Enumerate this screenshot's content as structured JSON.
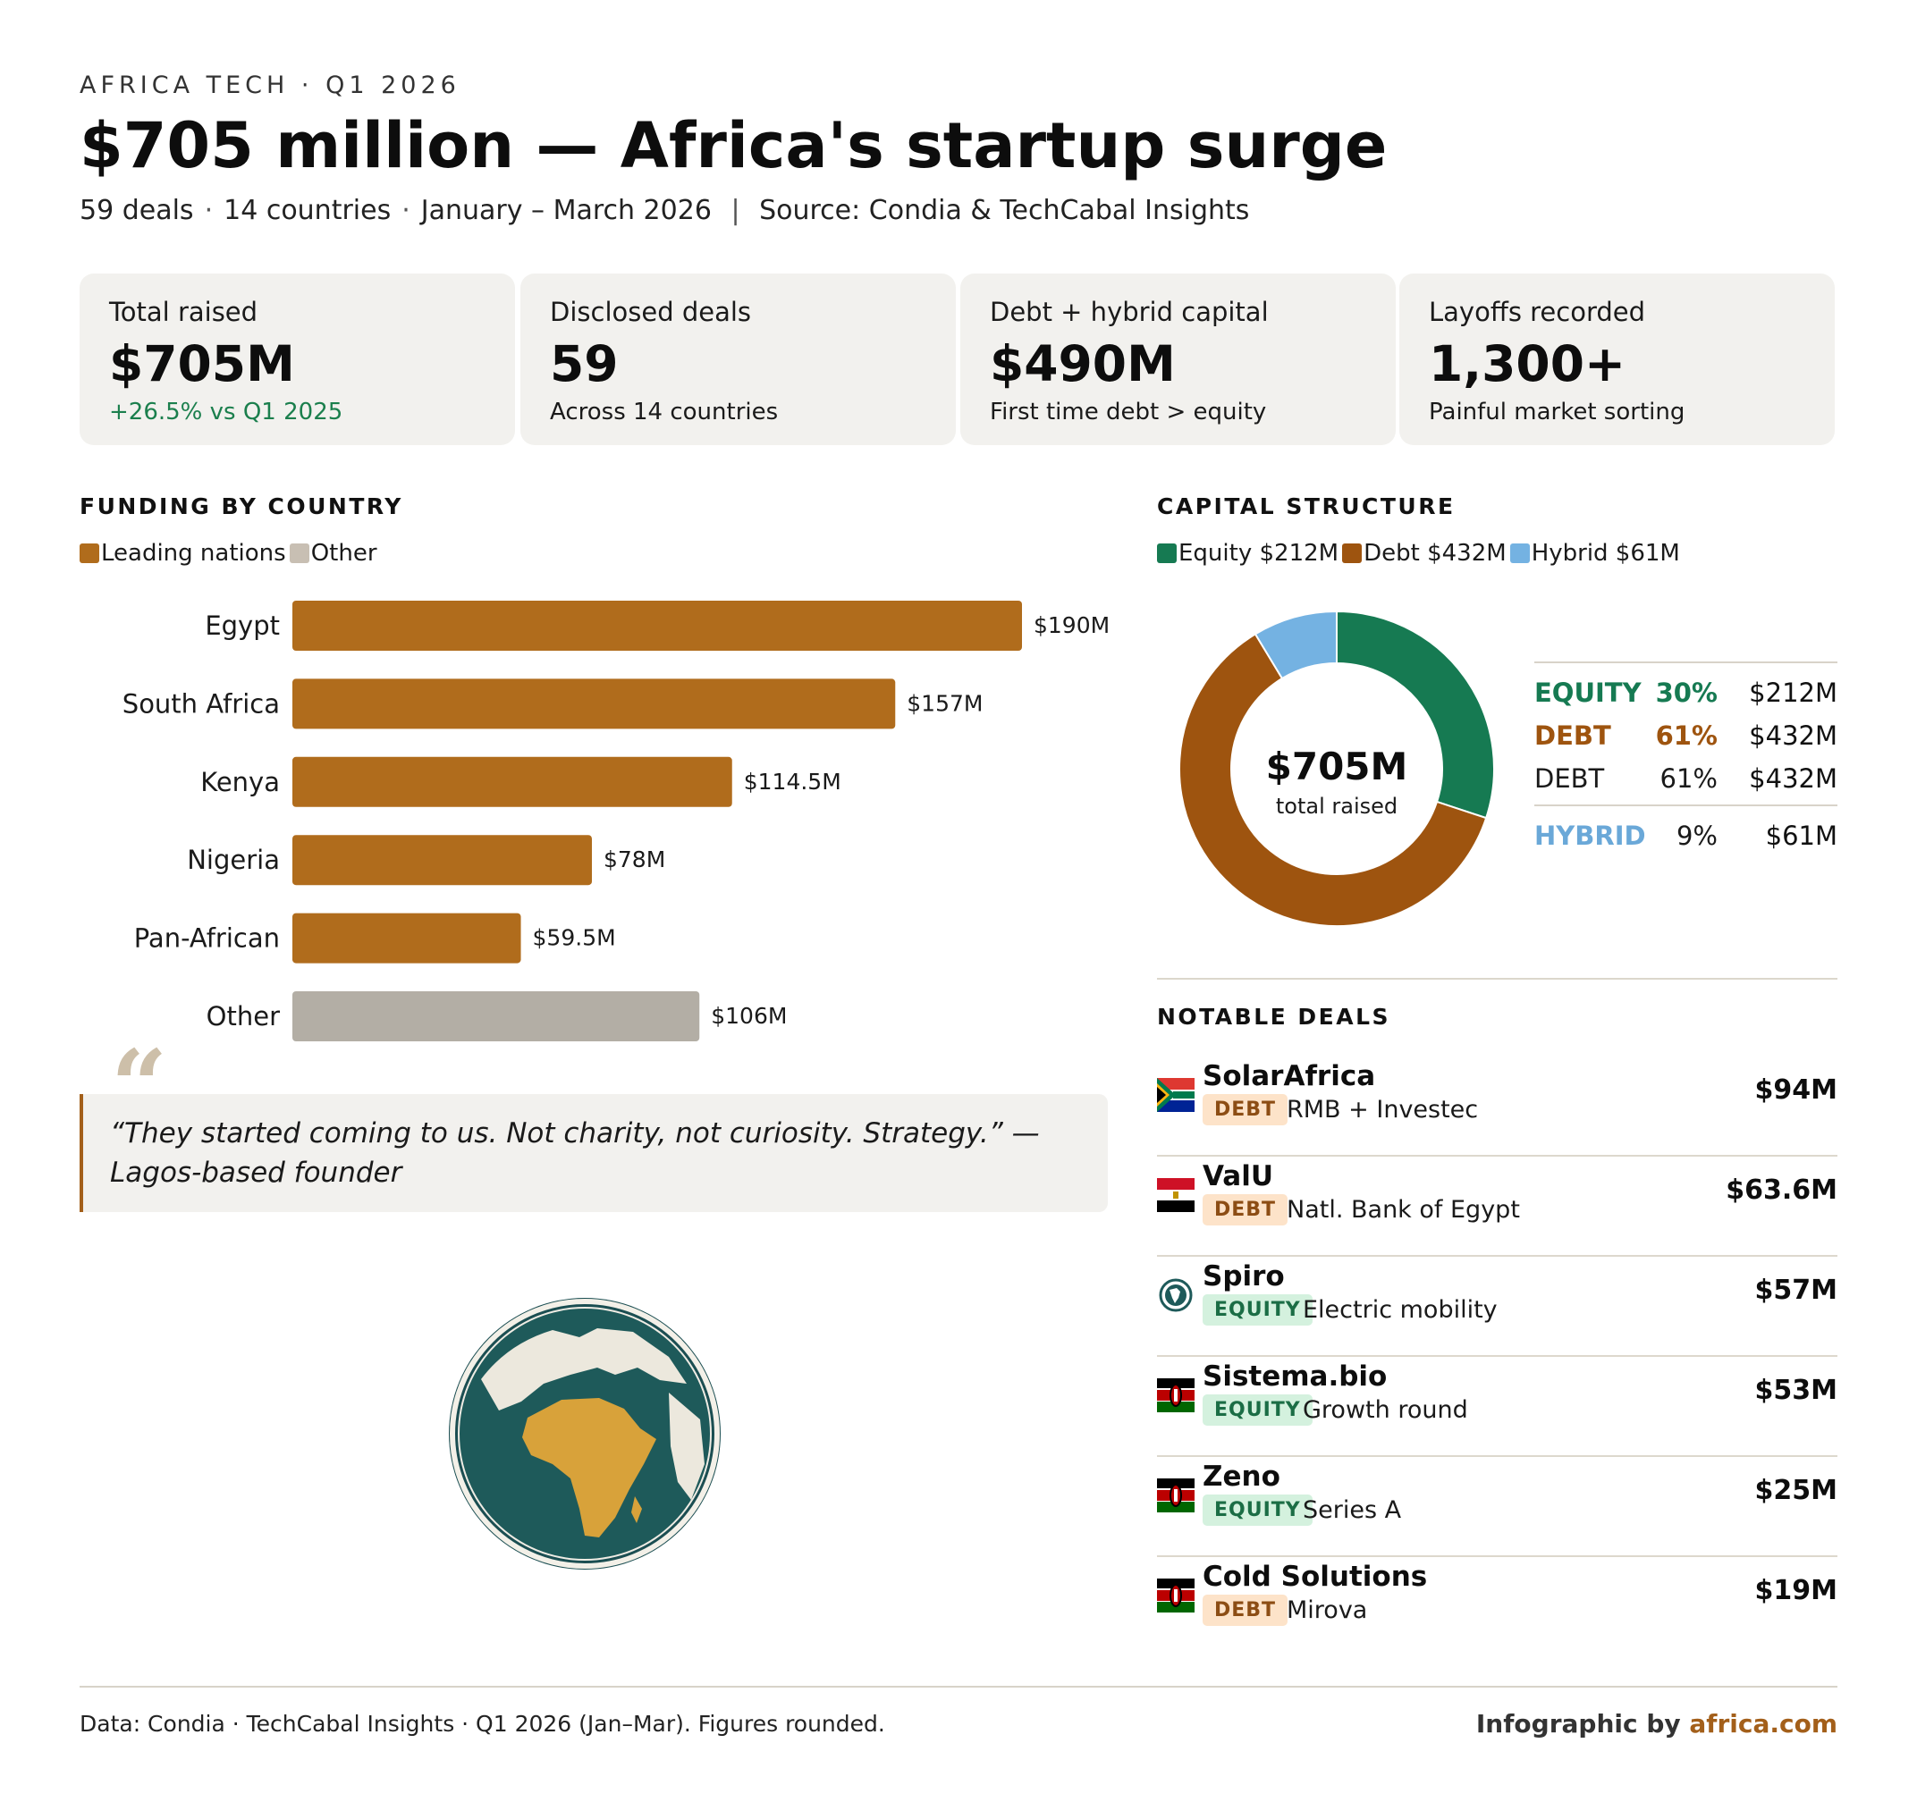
{
  "header": {
    "eyebrow": "AFRICA TECH · Q1 2026",
    "title": "$705 million — Africa's startup surge",
    "subtitle": {
      "deals": "59 deals",
      "countries": "14 countries",
      "period": "January – March 2026",
      "source": "Source: Condia & TechCabal Insights"
    }
  },
  "kpis": [
    {
      "label": "Total raised",
      "value": "$705M",
      "note": "+26.5% vs Q1 2025"
    },
    {
      "label": "Disclosed deals",
      "value": "59",
      "note": "Across 14 countries"
    },
    {
      "label": "Debt + hybrid capital",
      "value": "$490M",
      "note": "First time debt > equity"
    },
    {
      "label": "Layoffs recorded",
      "value": "1,300+",
      "note": "Painful market sorting"
    }
  ],
  "funding": {
    "heading": "FUNDING BY COUNTRY",
    "legend": [
      {
        "label": "Leading nations",
        "color": "#b06c1c"
      },
      {
        "label": "Other",
        "color": "#c8bfb3"
      }
    ]
  },
  "chart_data": [
    {
      "type": "bar",
      "orientation": "horizontal",
      "title": "FUNDING BY COUNTRY",
      "categories": [
        "Egypt",
        "South Africa",
        "Kenya",
        "Nigeria",
        "Pan-African",
        "Other"
      ],
      "values": [
        190,
        157,
        114.5,
        78,
        59.5,
        106
      ],
      "value_labels": [
        "$190M",
        "$157M",
        "$114.5M",
        "$78M",
        "$59.5M",
        "$106M"
      ],
      "groups": [
        "Leading nations",
        "Leading nations",
        "Leading nations",
        "Leading nations",
        "Leading nations",
        "Other"
      ],
      "colors": {
        "Leading nations": "#b06c1c",
        "Other": "#b3aea5"
      },
      "unit": "$M",
      "xlim": [
        0,
        190
      ],
      "grid": false,
      "legend": "top-left"
    },
    {
      "type": "pie",
      "style": "donut",
      "title": "CAPITAL STRUCTURE",
      "labels": [
        "Equity",
        "Debt",
        "Hybrid"
      ],
      "values": [
        212,
        432,
        61
      ],
      "legend_labels": [
        "Equity $212M",
        "Debt $432M",
        "Hybrid $61M"
      ],
      "colors": [
        "#167a52",
        "#9e540f",
        "#74b2e2"
      ],
      "center_value": "$705M",
      "center_label": "total raised",
      "legend": "top-left"
    }
  ],
  "capital": {
    "heading": "CAPITAL STRUCTURE",
    "table": [
      {
        "name": "EQUITY",
        "pct": "30%",
        "amount": "$212M",
        "color": "#167a52",
        "bold": true
      },
      {
        "name": "DEBT",
        "pct": "61%",
        "amount": "$432M",
        "color": "#9e540f",
        "bold": true
      },
      {
        "name": "DEBT",
        "pct": "61%",
        "amount": "$432M",
        "color": "#1a1a1a",
        "bold": false
      },
      {
        "name": "HYBRID",
        "pct": "9%",
        "amount": "$61M",
        "color": "#6aa8d8",
        "bold": true
      }
    ]
  },
  "quote": "“They started coming to us. Not charity, not curiosity. Strategy.” — Lagos-based founder",
  "deals": {
    "heading": "NOTABLE DEALS",
    "items": [
      {
        "name": "SolarAfrica",
        "type": "DEBT",
        "desc": "RMB + Investec",
        "amount": "$94M",
        "icon": "south-africa-flag-icon"
      },
      {
        "name": "ValU",
        "type": "DEBT",
        "desc": "Natl. Bank of Egypt",
        "amount": "$63.6M",
        "icon": "egypt-flag-icon"
      },
      {
        "name": "Spiro",
        "type": "EQUITY",
        "desc": "Electric mobility",
        "amount": "$57M",
        "icon": "globe-icon"
      },
      {
        "name": "Sistema.bio",
        "type": "EQUITY",
        "desc": "Growth round",
        "amount": "$53M",
        "icon": "kenya-flag-icon"
      },
      {
        "name": "Zeno",
        "type": "EQUITY",
        "desc": "Series A",
        "amount": "$25M",
        "icon": "kenya-flag-icon"
      },
      {
        "name": "Cold Solutions",
        "type": "DEBT",
        "desc": "Mirova",
        "amount": "$19M",
        "icon": "kenya-flag-icon"
      }
    ]
  },
  "footer": {
    "data_note": "Data: Condia · TechCabal Insights · Q1 2026 (Jan–Mar). Figures rounded.",
    "credit_prefix": "Infographic by ",
    "credit_brand": "africa.com"
  }
}
